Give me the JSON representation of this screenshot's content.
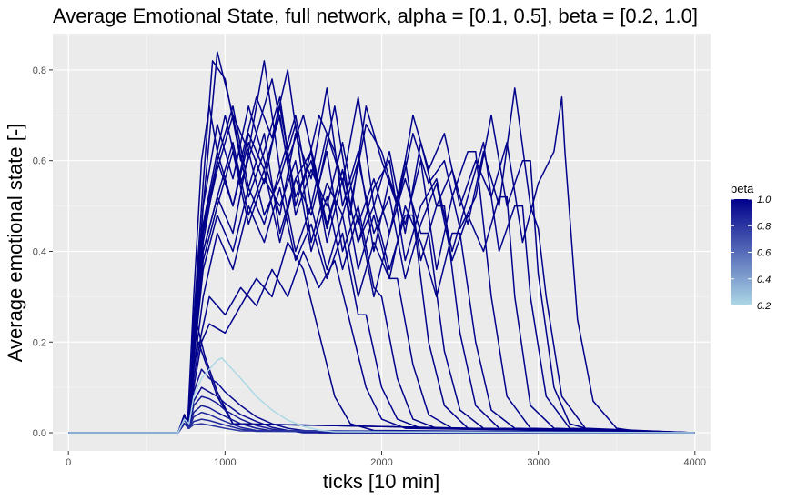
{
  "chart_data": {
    "type": "line",
    "title": "Average Emotional State, full network, alpha = [0.1, 0.5], beta = [0.2, 1.0]",
    "xlabel": "ticks [10 min]",
    "ylabel": "Average emotional state [-]",
    "xlim": [
      -100,
      4100
    ],
    "ylim": [
      -0.04,
      0.88
    ],
    "x_ticks": [
      0,
      1000,
      2000,
      3000,
      4000
    ],
    "x_tick_labels": [
      "0",
      "1000",
      "2000",
      "3000",
      "4000"
    ],
    "y_ticks": [
      0.0,
      0.2,
      0.4,
      0.6,
      0.8
    ],
    "y_tick_labels": [
      "0.0",
      "0.2",
      "0.4",
      "0.6",
      "0.8"
    ],
    "grid": true,
    "legend": {
      "title": "beta",
      "type": "colorbar",
      "placement": "right",
      "range": [
        0.2,
        1.0
      ],
      "breaks": [
        1.0,
        0.8,
        0.6,
        0.4,
        0.2
      ],
      "break_labels": [
        "1.0",
        "0.8",
        "0.6",
        "0.4",
        "0.2"
      ],
      "color_low": "#ADD8E6",
      "color_high": "#00008B"
    },
    "series": [
      {
        "beta": 1.0,
        "x": [
          0,
          700,
          740,
          760,
          800,
          850,
          900,
          950,
          1000,
          1100,
          1200,
          1300,
          1400,
          1500,
          1600,
          1700,
          1800,
          1900,
          2000,
          2100,
          2200,
          2300,
          2400,
          2500,
          2600,
          2700,
          2800,
          2900,
          3000,
          3100,
          3150,
          3170,
          3250,
          3350,
          3500,
          3700,
          4000
        ],
        "y": [
          0,
          0,
          0.04,
          0.01,
          0.3,
          0.6,
          0.72,
          0.62,
          0.7,
          0.55,
          0.66,
          0.78,
          0.6,
          0.7,
          0.55,
          0.72,
          0.5,
          0.68,
          0.62,
          0.5,
          0.7,
          0.58,
          0.66,
          0.5,
          0.6,
          0.52,
          0.64,
          0.42,
          0.55,
          0.62,
          0.74,
          0.62,
          0.25,
          0.07,
          0.01,
          0,
          0
        ]
      },
      {
        "beta": 1.0,
        "x": [
          0,
          700,
          740,
          770,
          800,
          860,
          920,
          1000,
          1100,
          1200,
          1300,
          1400,
          1500,
          1600,
          1700,
          1800,
          1900,
          2000,
          2100,
          2200,
          2300,
          2400,
          2500,
          2600,
          2700,
          2800,
          2900,
          2950,
          3000,
          3100,
          3200,
          3400,
          4000
        ],
        "y": [
          0,
          0,
          0.03,
          0.02,
          0.25,
          0.55,
          0.82,
          0.78,
          0.6,
          0.74,
          0.65,
          0.8,
          0.55,
          0.7,
          0.62,
          0.48,
          0.72,
          0.6,
          0.5,
          0.66,
          0.55,
          0.6,
          0.45,
          0.52,
          0.7,
          0.5,
          0.6,
          0.6,
          0.35,
          0.1,
          0.02,
          0,
          0
        ]
      },
      {
        "beta": 1.0,
        "x": [
          0,
          700,
          740,
          770,
          800,
          860,
          950,
          1050,
          1150,
          1250,
          1350,
          1450,
          1550,
          1650,
          1750,
          1850,
          1950,
          2050,
          2150,
          2250,
          2350,
          2450,
          2550,
          2650,
          2750,
          2850,
          2950,
          3000,
          3050,
          3150,
          3300,
          4000
        ],
        "y": [
          0,
          0,
          0.02,
          0.01,
          0.2,
          0.5,
          0.84,
          0.7,
          0.62,
          0.82,
          0.58,
          0.7,
          0.5,
          0.66,
          0.55,
          0.74,
          0.5,
          0.62,
          0.44,
          0.64,
          0.5,
          0.58,
          0.46,
          0.62,
          0.5,
          0.76,
          0.5,
          0.45,
          0.3,
          0.08,
          0.01,
          0
        ]
      },
      {
        "beta": 1.0,
        "x": [
          0,
          700,
          740,
          770,
          800,
          860,
          950,
          1050,
          1150,
          1250,
          1350,
          1450,
          1550,
          1650,
          1750,
          1850,
          1950,
          2050,
          2150,
          2250,
          2350,
          2450,
          2550,
          2650,
          2750,
          2850,
          2900,
          2950,
          3050,
          3200,
          4000
        ],
        "y": [
          0,
          0,
          0.03,
          0.02,
          0.22,
          0.45,
          0.6,
          0.5,
          0.64,
          0.55,
          0.72,
          0.52,
          0.6,
          0.45,
          0.58,
          0.42,
          0.54,
          0.6,
          0.38,
          0.5,
          0.56,
          0.4,
          0.52,
          0.64,
          0.4,
          0.5,
          0.5,
          0.3,
          0.08,
          0.01,
          0
        ]
      },
      {
        "beta": 1.0,
        "x": [
          0,
          700,
          740,
          770,
          800,
          860,
          950,
          1050,
          1150,
          1250,
          1350,
          1450,
          1550,
          1650,
          1750,
          1850,
          1950,
          2050,
          2150,
          2250,
          2350,
          2450,
          2550,
          2650,
          2750,
          2800,
          2850,
          2950,
          3100,
          4000
        ],
        "y": [
          0,
          0,
          0.02,
          0.01,
          0.18,
          0.4,
          0.52,
          0.44,
          0.62,
          0.48,
          0.56,
          0.68,
          0.42,
          0.55,
          0.48,
          0.6,
          0.44,
          0.52,
          0.34,
          0.46,
          0.55,
          0.38,
          0.48,
          0.4,
          0.52,
          0.52,
          0.3,
          0.06,
          0.01,
          0
        ]
      },
      {
        "beta": 1.0,
        "x": [
          0,
          700,
          740,
          770,
          800,
          860,
          950,
          1050,
          1150,
          1250,
          1350,
          1450,
          1550,
          1650,
          1750,
          1850,
          1950,
          2050,
          2150,
          2250,
          2350,
          2450,
          2550,
          2600,
          2700,
          2800,
          2950,
          4000
        ],
        "y": [
          0,
          0,
          0.03,
          0.02,
          0.24,
          0.5,
          0.68,
          0.56,
          0.72,
          0.6,
          0.48,
          0.66,
          0.56,
          0.76,
          0.5,
          0.62,
          0.4,
          0.56,
          0.46,
          0.6,
          0.36,
          0.52,
          0.62,
          0.62,
          0.3,
          0.08,
          0.01,
          0
        ]
      },
      {
        "beta": 1.0,
        "x": [
          0,
          700,
          740,
          770,
          800,
          860,
          950,
          1050,
          1150,
          1250,
          1350,
          1450,
          1550,
          1650,
          1750,
          1850,
          1950,
          2050,
          2150,
          2250,
          2350,
          2450,
          2500,
          2600,
          2700,
          2850,
          4000
        ],
        "y": [
          0,
          0,
          0.02,
          0.01,
          0.2,
          0.42,
          0.6,
          0.72,
          0.54,
          0.66,
          0.44,
          0.56,
          0.62,
          0.42,
          0.56,
          0.36,
          0.48,
          0.34,
          0.5,
          0.42,
          0.3,
          0.44,
          0.44,
          0.2,
          0.05,
          0.01,
          0
        ]
      },
      {
        "beta": 1.0,
        "x": [
          0,
          700,
          740,
          770,
          800,
          860,
          950,
          1050,
          1150,
          1250,
          1350,
          1450,
          1550,
          1650,
          1750,
          1850,
          1950,
          2050,
          2150,
          2250,
          2350,
          2400,
          2500,
          2600,
          2750,
          4000
        ],
        "y": [
          0,
          0,
          0.03,
          0.02,
          0.22,
          0.46,
          0.62,
          0.5,
          0.66,
          0.58,
          0.7,
          0.48,
          0.58,
          0.5,
          0.64,
          0.46,
          0.56,
          0.44,
          0.6,
          0.38,
          0.5,
          0.5,
          0.22,
          0.06,
          0.01,
          0
        ]
      },
      {
        "beta": 1.0,
        "x": [
          0,
          700,
          740,
          770,
          800,
          860,
          950,
          1050,
          1150,
          1250,
          1350,
          1450,
          1550,
          1650,
          1750,
          1850,
          1950,
          2050,
          2150,
          2250,
          2300,
          2400,
          2500,
          2650,
          4000
        ],
        "y": [
          0,
          0,
          0.02,
          0.01,
          0.18,
          0.38,
          0.5,
          0.62,
          0.46,
          0.56,
          0.5,
          0.6,
          0.4,
          0.52,
          0.36,
          0.48,
          0.3,
          0.44,
          0.56,
          0.44,
          0.44,
          0.18,
          0.05,
          0.01,
          0
        ]
      },
      {
        "beta": 1.0,
        "x": [
          0,
          700,
          740,
          770,
          800,
          860,
          950,
          1050,
          1150,
          1250,
          1350,
          1450,
          1550,
          1650,
          1750,
          1850,
          1950,
          2050,
          2150,
          2200,
          2300,
          2400,
          2550,
          4000
        ],
        "y": [
          0,
          0,
          0.03,
          0.02,
          0.2,
          0.44,
          0.58,
          0.7,
          0.52,
          0.62,
          0.74,
          0.5,
          0.62,
          0.46,
          0.58,
          0.42,
          0.5,
          0.36,
          0.48,
          0.48,
          0.2,
          0.06,
          0.01,
          0
        ]
      },
      {
        "beta": 1.0,
        "x": [
          0,
          700,
          740,
          770,
          800,
          860,
          950,
          1050,
          1150,
          1250,
          1350,
          1450,
          1550,
          1650,
          1750,
          1850,
          1950,
          2050,
          2100,
          2200,
          2300,
          2450,
          4000
        ],
        "y": [
          0,
          0,
          0.02,
          0.01,
          0.16,
          0.36,
          0.48,
          0.4,
          0.54,
          0.46,
          0.58,
          0.4,
          0.5,
          0.36,
          0.48,
          0.3,
          0.42,
          0.34,
          0.34,
          0.15,
          0.04,
          0.01,
          0
        ]
      },
      {
        "beta": 1.0,
        "x": [
          0,
          700,
          740,
          770,
          800,
          860,
          950,
          1050,
          1150,
          1250,
          1350,
          1450,
          1550,
          1650,
          1750,
          1850,
          1950,
          2000,
          2100,
          2200,
          2350,
          4000
        ],
        "y": [
          0,
          0,
          0.03,
          0.02,
          0.2,
          0.4,
          0.52,
          0.64,
          0.48,
          0.58,
          0.42,
          0.56,
          0.48,
          0.62,
          0.4,
          0.5,
          0.32,
          0.3,
          0.12,
          0.03,
          0.01,
          0
        ]
      },
      {
        "beta": 1.0,
        "x": [
          0,
          700,
          740,
          770,
          800,
          860,
          950,
          1050,
          1150,
          1250,
          1350,
          1450,
          1550,
          1650,
          1750,
          1850,
          1900,
          2000,
          2100,
          2250,
          4000
        ],
        "y": [
          0,
          0,
          0.02,
          0.01,
          0.14,
          0.3,
          0.44,
          0.36,
          0.5,
          0.42,
          0.54,
          0.38,
          0.46,
          0.34,
          0.44,
          0.26,
          0.26,
          0.1,
          0.03,
          0.01,
          0
        ]
      },
      {
        "beta": 1.0,
        "x": [
          0,
          700,
          740,
          770,
          800,
          850,
          900,
          1000,
          1100,
          1200,
          1300,
          1400,
          1500,
          1600,
          1700,
          1800,
          1900,
          2000,
          2150,
          4000
        ],
        "y": [
          0,
          0,
          0.03,
          0.01,
          0.12,
          0.22,
          0.3,
          0.26,
          0.32,
          0.28,
          0.36,
          0.3,
          0.4,
          0.32,
          0.38,
          0.24,
          0.1,
          0.03,
          0.01,
          0
        ]
      },
      {
        "beta": 1.0,
        "x": [
          0,
          700,
          740,
          770,
          800,
          850,
          900,
          1000,
          1100,
          1200,
          1300,
          1400,
          1500,
          1600,
          1700,
          1800,
          1950,
          4000
        ],
        "y": [
          0,
          0,
          0.02,
          0.01,
          0.1,
          0.2,
          0.24,
          0.22,
          0.28,
          0.34,
          0.3,
          0.42,
          0.36,
          0.22,
          0.08,
          0.02,
          0.005,
          0
        ]
      },
      {
        "beta": 0.95,
        "x": [
          0,
          700,
          740,
          770,
          800,
          850,
          900,
          950,
          1000,
          1100,
          1200,
          1300,
          1400,
          1500,
          1600,
          4000
        ],
        "y": [
          0,
          0,
          0.03,
          0.01,
          0.09,
          0.14,
          0.12,
          0.11,
          0.09,
          0.06,
          0.035,
          0.02,
          0.01,
          0.005,
          0,
          0
        ]
      },
      {
        "beta": 0.95,
        "x": [
          0,
          700,
          740,
          770,
          800,
          850,
          900,
          950,
          1000,
          1100,
          1200,
          1300,
          1400,
          1500,
          4000
        ],
        "y": [
          0,
          0,
          0.02,
          0.01,
          0.07,
          0.1,
          0.09,
          0.08,
          0.065,
          0.04,
          0.025,
          0.012,
          0.005,
          0,
          0
        ]
      },
      {
        "beta": 0.9,
        "x": [
          0,
          700,
          740,
          770,
          800,
          850,
          900,
          950,
          1000,
          1100,
          1200,
          1300,
          1400,
          4000
        ],
        "y": [
          0,
          0,
          0.03,
          0.01,
          0.06,
          0.08,
          0.075,
          0.065,
          0.05,
          0.03,
          0.016,
          0.008,
          0.003,
          0
        ]
      },
      {
        "beta": 0.9,
        "x": [
          0,
          700,
          740,
          770,
          800,
          850,
          900,
          950,
          1000,
          1100,
          1200,
          1300,
          4000
        ],
        "y": [
          0,
          0,
          0.02,
          0.01,
          0.045,
          0.06,
          0.055,
          0.045,
          0.036,
          0.02,
          0.01,
          0.004,
          0
        ]
      },
      {
        "beta": 0.85,
        "x": [
          0,
          700,
          740,
          770,
          800,
          850,
          900,
          950,
          1000,
          1100,
          1200,
          4000
        ],
        "y": [
          0,
          0,
          0.03,
          0.01,
          0.035,
          0.045,
          0.04,
          0.032,
          0.025,
          0.012,
          0.005,
          0
        ]
      },
      {
        "beta": 0.85,
        "x": [
          0,
          700,
          740,
          770,
          800,
          850,
          900,
          1000,
          1100,
          1200,
          4000
        ],
        "y": [
          0,
          0,
          0.02,
          0.01,
          0.025,
          0.03,
          0.027,
          0.017,
          0.008,
          0.003,
          0
        ]
      },
      {
        "beta": 0.8,
        "x": [
          0,
          700,
          740,
          770,
          800,
          850,
          900,
          1000,
          1100,
          4000
        ],
        "y": [
          0,
          0,
          0.03,
          0.01,
          0.018,
          0.02,
          0.017,
          0.01,
          0.004,
          0
        ]
      },
      {
        "beta": 1.0,
        "x": [
          0,
          700,
          740,
          760,
          790,
          830,
          880,
          950,
          1050,
          4000
        ],
        "y": [
          0,
          0,
          0.04,
          0.02,
          0.12,
          0.2,
          0.15,
          0.08,
          0.02,
          0
        ]
      },
      {
        "beta": 1.0,
        "x": [
          0,
          700,
          740,
          760,
          790,
          820,
          870,
          950,
          1050,
          4000
        ],
        "y": [
          0,
          0,
          0.04,
          0.02,
          0.15,
          0.24,
          0.17,
          0.09,
          0.02,
          0
        ]
      },
      {
        "beta": 0.2,
        "x": [
          0,
          700,
          740,
          770,
          800,
          850,
          900,
          950,
          980,
          1020,
          1100,
          1200,
          1300,
          1400,
          1500,
          1600,
          1700,
          4000
        ],
        "y": [
          0,
          0,
          0.03,
          0.02,
          0.08,
          0.12,
          0.14,
          0.16,
          0.165,
          0.15,
          0.12,
          0.08,
          0.05,
          0.028,
          0.014,
          0.006,
          0.002,
          0
        ]
      }
    ]
  }
}
